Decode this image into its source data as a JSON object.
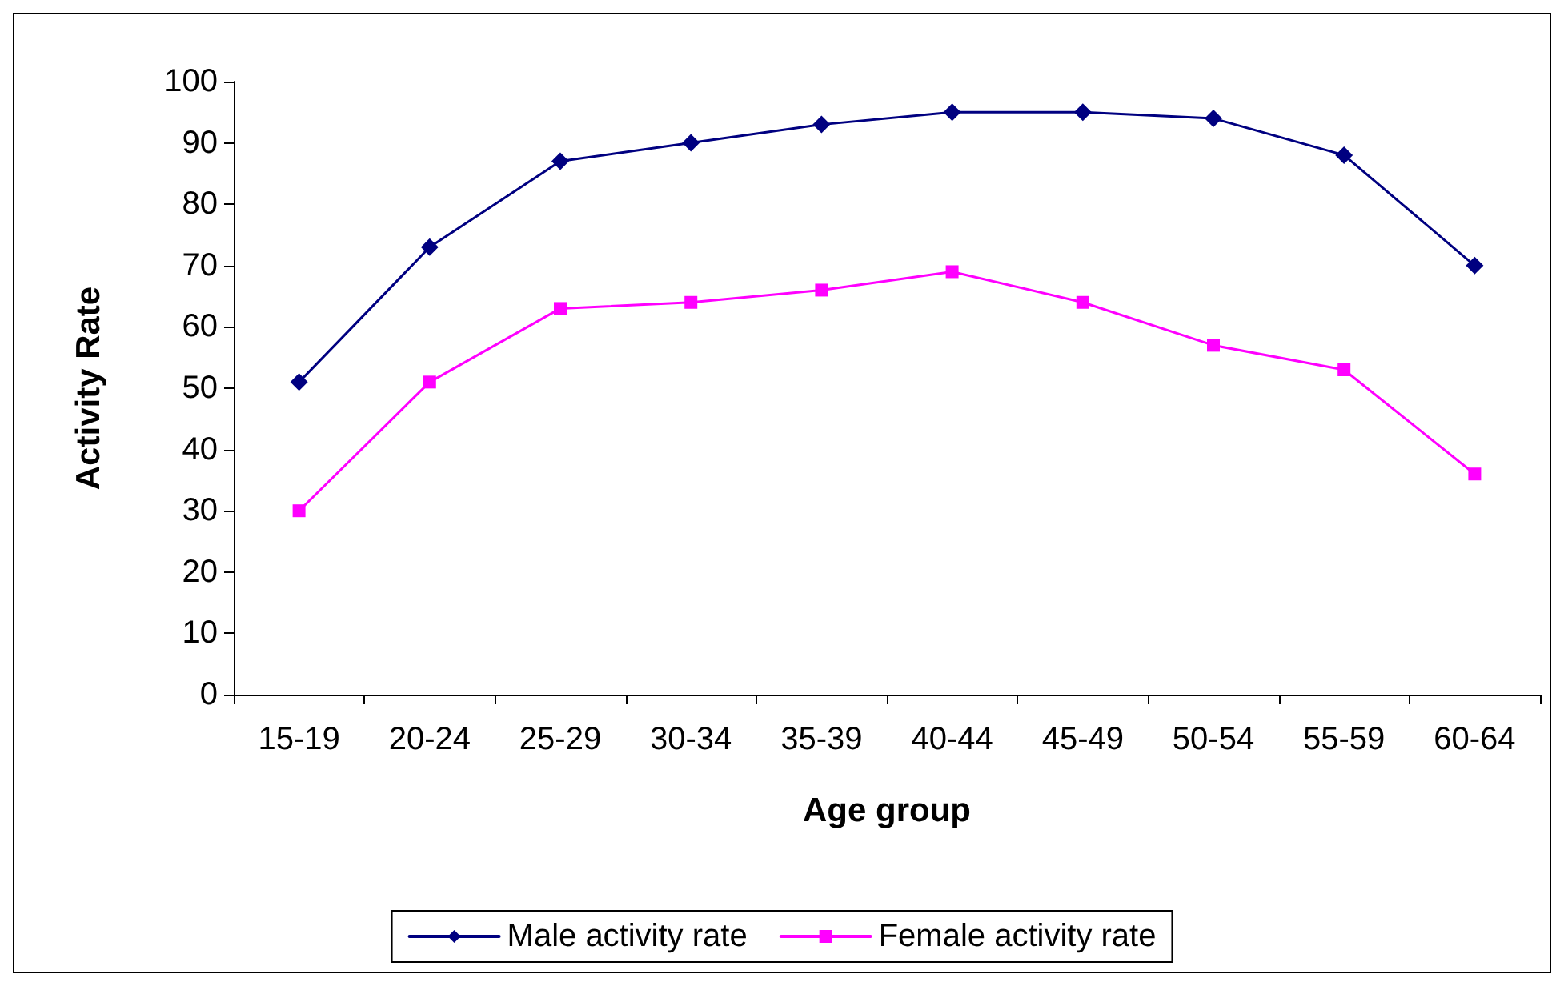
{
  "chart_data": {
    "type": "line",
    "xlabel": "Age group",
    "ylabel": "Activity Rate",
    "categories": [
      "15-19",
      "20-24",
      "25-29",
      "30-34",
      "35-39",
      "40-44",
      "45-49",
      "50-54",
      "55-59",
      "60-64"
    ],
    "series": [
      {
        "name": "Male activity rate",
        "color": "#000080",
        "marker": "diamond",
        "values": [
          51,
          73,
          87,
          90,
          93,
          95,
          95,
          94,
          88,
          70
        ]
      },
      {
        "name": "Female activity rate",
        "color": "#ff00ff",
        "marker": "square",
        "values": [
          30,
          51,
          63,
          64,
          66,
          69,
          64,
          57,
          53,
          36
        ]
      }
    ],
    "ylim": [
      0,
      100
    ],
    "yticks": [
      0,
      10,
      20,
      30,
      40,
      50,
      60,
      70,
      80,
      90,
      100
    ],
    "grid": false,
    "legend": "bottom",
    "line_style": "solid"
  }
}
